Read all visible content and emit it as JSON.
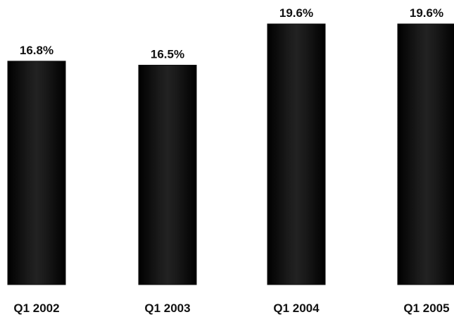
{
  "chart_data": {
    "type": "bar",
    "categories": [
      "Q1 2002",
      "Q1 2003",
      "Q1 2004",
      "Q1 2005"
    ],
    "values": [
      16.8,
      16.5,
      19.6,
      19.6
    ],
    "value_labels": [
      "16.8%",
      "16.5%",
      "19.6%",
      "19.6%"
    ],
    "title": "",
    "xlabel": "",
    "ylabel": "",
    "grid": false,
    "legend": "none"
  },
  "colors": {
    "bar": "#0d0d0d",
    "background": "#ffffff",
    "text": "#111111"
  }
}
